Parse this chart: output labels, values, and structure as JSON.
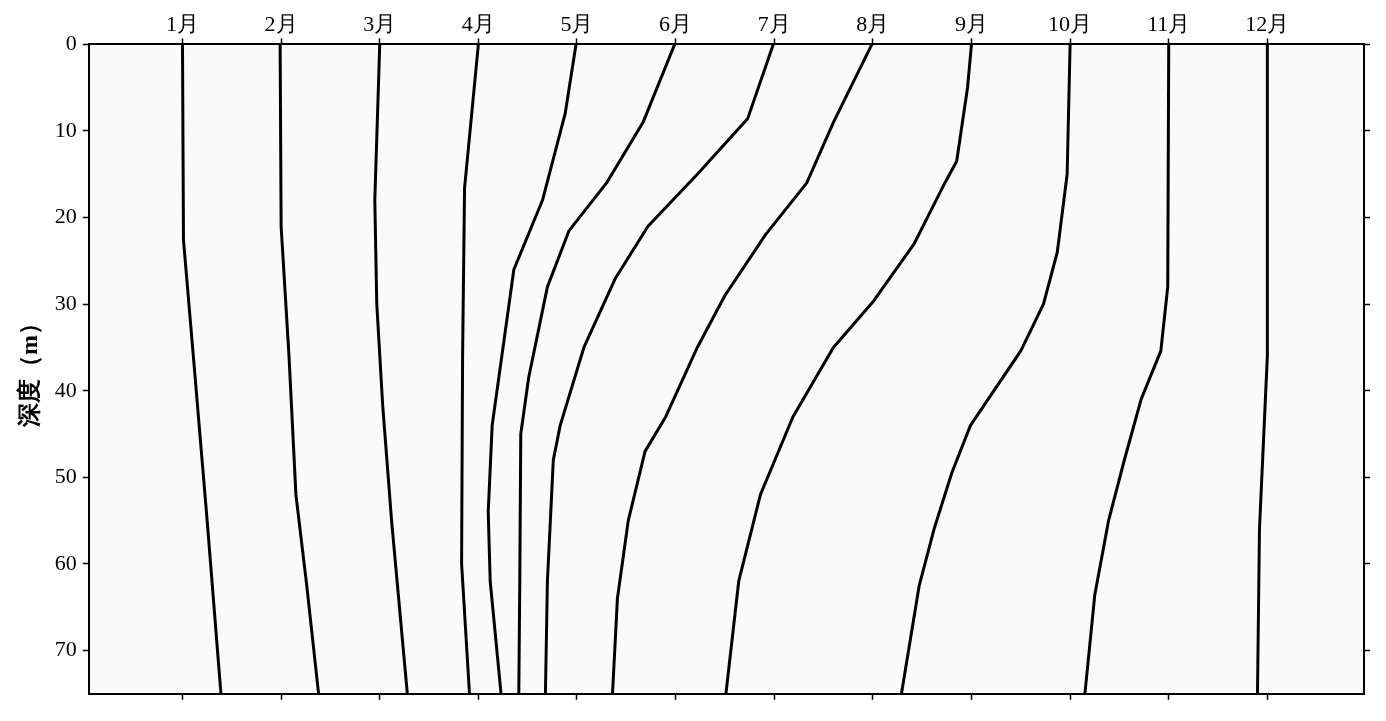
{
  "chart_data": {
    "type": "line",
    "ylabel": "深度（m）",
    "xlim": [
      0.05,
      12.98
    ],
    "xticks": [
      {
        "value": 1,
        "label": "1月"
      },
      {
        "value": 2,
        "label": "2月"
      },
      {
        "value": 3,
        "label": "3月"
      },
      {
        "value": 4,
        "label": "4月"
      },
      {
        "value": 5,
        "label": "5月"
      },
      {
        "value": 6,
        "label": "6月"
      },
      {
        "value": 7,
        "label": "7月"
      },
      {
        "value": 8,
        "label": "8月"
      },
      {
        "value": 9,
        "label": "9月"
      },
      {
        "value": 10,
        "label": "10月"
      },
      {
        "value": 11,
        "label": "11月"
      },
      {
        "value": 12,
        "label": "12月"
      }
    ],
    "ylim": [
      75,
      0
    ],
    "yticks": [
      0,
      10,
      20,
      30,
      40,
      50,
      60,
      70
    ],
    "grid": false,
    "legend": false,
    "marker": "none",
    "line_style": "solid",
    "series": [
      {
        "color": "#000000",
        "x": [
          1.0,
          1.01,
          1.11,
          1.25,
          1.39
        ],
        "values": [
          0,
          22.6,
          36,
          55,
          75
        ]
      },
      {
        "color": "#000000",
        "x": [
          1.99,
          2.0,
          2.08,
          2.15,
          2.26,
          2.38
        ],
        "values": [
          0,
          21,
          36,
          52,
          62.5,
          75
        ]
      },
      {
        "color": "#000000",
        "x": [
          3.0,
          2.95,
          2.97,
          3.03,
          3.12,
          3.28
        ],
        "values": [
          0,
          18,
          30,
          41.7,
          55,
          75
        ]
      },
      {
        "color": "#000000",
        "x": [
          4.0,
          3.86,
          3.84,
          3.83,
          3.91
        ],
        "values": [
          0,
          16.6,
          36,
          60,
          75
        ]
      },
      {
        "color": "#000000",
        "x": [
          4.99,
          4.88,
          4.65,
          4.36,
          4.14,
          4.1,
          4.12,
          4.23
        ],
        "values": [
          0,
          8,
          18,
          26,
          44,
          54,
          62,
          75
        ]
      },
      {
        "color": "#000000",
        "x": [
          5.99,
          5.67,
          5.3,
          4.92,
          4.7,
          4.51,
          4.43,
          4.42,
          4.41
        ],
        "values": [
          0,
          9,
          16,
          21.5,
          28,
          38.5,
          45,
          62,
          75
        ]
      },
      {
        "color": "#000000",
        "x": [
          6.99,
          6.73,
          6.22,
          5.72,
          5.39,
          5.07,
          4.83,
          4.76,
          4.7,
          4.68
        ],
        "values": [
          0,
          8.6,
          15,
          21,
          27,
          35,
          44,
          48,
          62,
          75
        ]
      },
      {
        "color": "#000000",
        "x": [
          7.99,
          7.6,
          7.33,
          6.91,
          6.5,
          6.22,
          5.9,
          5.69,
          5.52,
          5.41,
          5.36
        ],
        "values": [
          0,
          9,
          16,
          22,
          29,
          35,
          43,
          47,
          55,
          64,
          75
        ]
      },
      {
        "color": "#000000",
        "x": [
          9.0,
          8.96,
          8.85,
          8.73,
          8.42,
          8.01,
          7.6,
          7.19,
          6.86,
          6.64,
          6.51
        ],
        "values": [
          0,
          5,
          13.5,
          16,
          23,
          29.6,
          35,
          43,
          52,
          62,
          75
        ]
      },
      {
        "color": "#000000",
        "x": [
          10.0,
          9.97,
          9.87,
          9.73,
          9.5,
          8.99,
          8.8,
          8.62,
          8.47,
          8.29
        ],
        "values": [
          0,
          15,
          24,
          30,
          35.4,
          44,
          49.5,
          56,
          62.5,
          75
        ]
      },
      {
        "color": "#000000",
        "x": [
          11.0,
          10.99,
          10.92,
          10.72,
          10.55,
          10.39,
          10.25,
          10.15
        ],
        "values": [
          0,
          28,
          35.4,
          41,
          48,
          55,
          63.6,
          75
        ]
      },
      {
        "color": "#000000",
        "x": [
          12.0,
          12.0,
          11.92,
          11.9
        ],
        "values": [
          0,
          36,
          56,
          75
        ]
      }
    ]
  }
}
